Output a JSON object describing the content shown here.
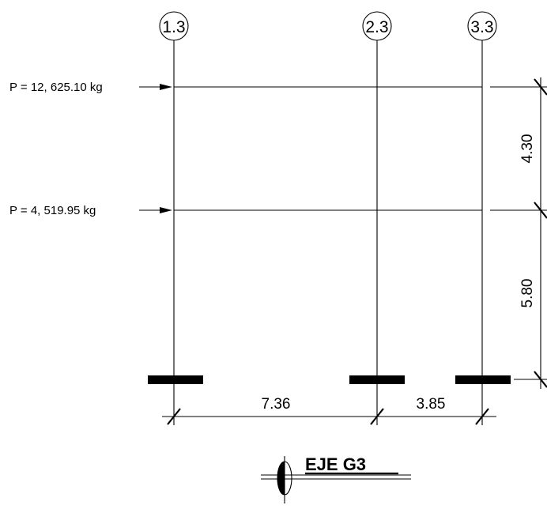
{
  "axes": [
    {
      "label": "1.3"
    },
    {
      "label": "2.3"
    },
    {
      "label": "3.3"
    }
  ],
  "loads": [
    {
      "label": "P = 12, 625.10 kg"
    },
    {
      "label": "P = 4, 519.95 kg"
    }
  ],
  "spans": {
    "horizontal": [
      "7.36",
      "3.85"
    ],
    "vertical": [
      "4.30",
      "5.80"
    ]
  },
  "title": "EJE G3"
}
